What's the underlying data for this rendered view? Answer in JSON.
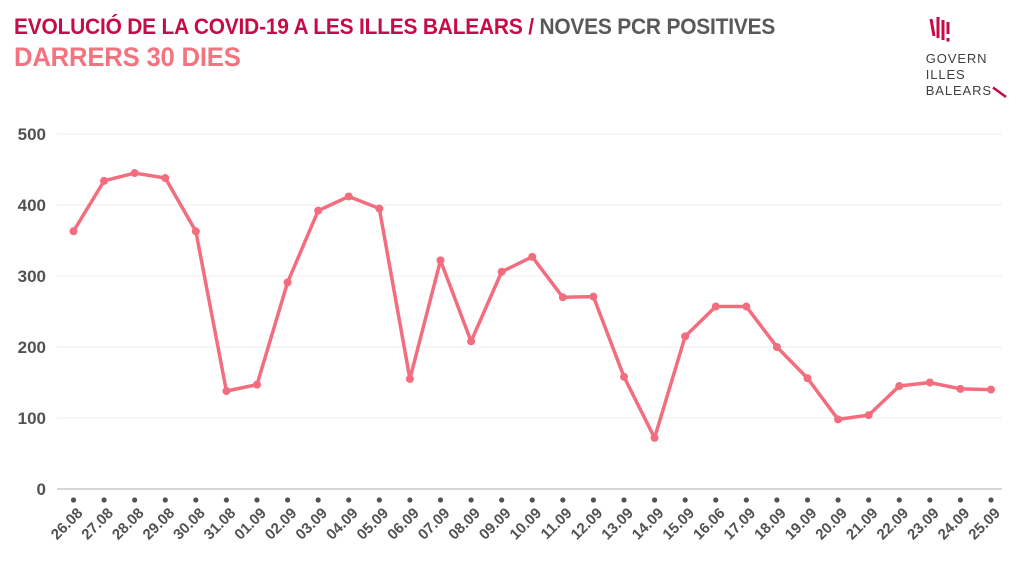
{
  "header": {
    "title_main": "EVOLUCIÓ DE LA COVID-19 A LES ILLES BALEARS / ",
    "title_secondary": "NOVES PCR POSITIVES",
    "subtitle": "DARRERS 30 DIES"
  },
  "logo": {
    "lines": [
      "GOVERN",
      "ILLES",
      "BALEARS"
    ]
  },
  "colors": {
    "title_main": "#c60b46",
    "title_secondary": "#58595b",
    "subtitle": "#f4737f",
    "line": "#f36d7e",
    "axis_text": "#525254",
    "gridline": "#ededed",
    "baseline": "#d6d6d6",
    "tick_dot": "#525254",
    "logo_accent": "#c60b46"
  },
  "chart_data": {
    "type": "line",
    "title": "EVOLUCIÓ DE LA COVID-19 A LES ILLES BALEARS / NOVES PCR POSITIVES — DARRERS 30 DIES",
    "categories": [
      "26.08",
      "27.08",
      "28.08",
      "29.08",
      "30.08",
      "31.08",
      "01.09",
      "02.09",
      "03.09",
      "04.09",
      "05.09",
      "06.09",
      "07.09",
      "08.09",
      "09.09",
      "10.09",
      "11.09",
      "12.09",
      "13.09",
      "14.09",
      "15.09",
      "16.06",
      "17.09",
      "18.09",
      "19.09",
      "20.09",
      "21.09",
      "22.09",
      "23.09",
      "24.09",
      "25.09"
    ],
    "values": [
      363,
      434,
      445,
      438,
      363,
      138,
      147,
      291,
      392,
      412,
      395,
      155,
      322,
      208,
      306,
      327,
      270,
      271,
      158,
      72,
      215,
      257,
      257,
      200,
      156,
      98,
      104,
      145,
      150,
      141,
      140
    ],
    "xlabel": "",
    "ylabel": "",
    "ylim": [
      0,
      500
    ],
    "yticks": [
      0,
      100,
      200,
      300,
      400,
      500
    ],
    "grid": true,
    "legend": false,
    "marker": "circle",
    "x_label_rotation": -45
  }
}
